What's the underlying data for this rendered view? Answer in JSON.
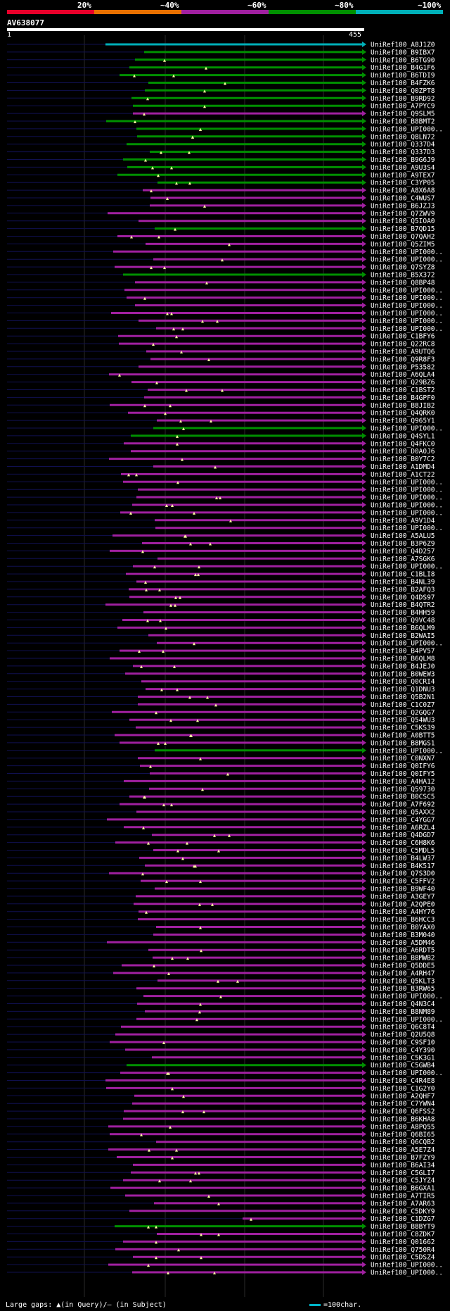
{
  "legend": {
    "labels": [
      "20%",
      "~40%",
      "~60%",
      "~80%",
      "~100%"
    ],
    "colors": [
      "#e8002a",
      "#e87000",
      "#a020a0",
      "#009000",
      "#00b0b8"
    ]
  },
  "query": {
    "id": "AV638077",
    "start": "1",
    "end": "455"
  },
  "footer": {
    "gaps_text": "Large gaps: ▲(in Query)/– (in Subject)",
    "scale_text": "=100char."
  },
  "hits": [
    "UniRef100_A8J1Z0",
    "UniRef100_B9IBX7",
    "UniRef100_B6TG90",
    "UniRef100_B4G1F6",
    "UniRef100_B6TDI9",
    "UniRef100_B4FZK6",
    "UniRef100_Q0ZPT8",
    "UniRef100_B9RD92",
    "UniRef100_A7PYC9",
    "UniRef100_Q9SLM5",
    "UniRef100_B8BMT2",
    "UniRef100_UPI000..",
    "UniRef100_Q8LN72",
    "UniRef100_Q337D4",
    "UniRef100_Q337D3",
    "UniRef100_B9G6J9",
    "UniRef100_A9U3S4",
    "UniRef100_A9TEX7",
    "UniRef100_C3YP05",
    "UniRef100_A8X6A8",
    "UniRef100_C4WUS7",
    "UniRef100_B6JZJ3",
    "UniRef100_Q7ZWV9",
    "UniRef100_Q5IOA0",
    "UniRef100_B7QD15",
    "UniRef100_Q7QAH2",
    "UniRef100_Q5ZIM5",
    "UniRef100_UPI000..",
    "UniRef100_UPI000..",
    "UniRef100_Q7SYZ8",
    "UniRef100_B5X372",
    "UniRef100_Q8BP48",
    "UniRef100_UPI000..",
    "UniRef100_UPI000..",
    "UniRef100_UPI000..",
    "UniRef100_UPI000..",
    "UniRef100_UPI000..",
    "UniRef100_UPI000..",
    "UniRef100_C1BFY6",
    "UniRef100_Q22RC8",
    "UniRef100_A9UTQ6",
    "UniRef100_Q9R8F3",
    "UniRef100_P53582",
    "UniRef100_A6QLA4",
    "UniRef100_Q29BZ6",
    "UniRef100_C1BST2",
    "UniRef100_B4GPF0",
    "UniRef100_B8JIB2",
    "UniRef100_Q4QRK0",
    "UniRef100_Q965Y1",
    "UniRef100_UPI000..",
    "UniRef100_Q4SYL1",
    "UniRef100_Q4FKC0",
    "UniRef100_D0A0J6",
    "UniRef100_B0Y7C2",
    "UniRef100_A1DMD4",
    "UniRef100_A1CT22",
    "UniRef100_UPI000..",
    "UniRef100_UPI000..",
    "UniRef100_UPI000..",
    "UniRef100_UPI000..",
    "UniRef100_UPI000..",
    "UniRef100_A9V1D4",
    "UniRef100_UPI000..",
    "UniRef100_A5ALU5",
    "UniRef100_B3P6Z9",
    "UniRef100_Q4D257",
    "UniRef100_A7SGK6",
    "UniRef100_UPI000..",
    "UniRef100_C1BLI8",
    "UniRef100_B4NL39",
    "UniRef100_B2AFQ3",
    "UniRef100_Q4DS97",
    "UniRef100_B4QTR2",
    "UniRef100_B4HH59",
    "UniRef100_Q9VC48",
    "UniRef100_B6QLM9",
    "UniRef100_B2WAI5",
    "UniRef100_UPI000..",
    "UniRef100_B4PV57",
    "UniRef100_B6QLM8",
    "UniRef100_B4JEJ0",
    "UniRef100_B0WEW3",
    "UniRef100_Q0CRI4",
    "UniRef100_Q1DNU3",
    "UniRef100_Q5B2N1",
    "UniRef100_C1C0Z7",
    "UniRef100_Q2GQG7",
    "UniRef100_Q54WU3",
    "UniRef100_C5KS39",
    "UniRef100_A0BTT5",
    "UniRef100_B8MGS1",
    "UniRef100_UPI000..",
    "UniRef100_C0NXN7",
    "UniRef100_Q0IFY6",
    "UniRef100_Q0IFY5",
    "UniRef100_A4HA12",
    "UniRef100_Q59730",
    "UniRef100_B0CSC5",
    "UniRef100_A7F692",
    "UniRef100_Q5AXX2",
    "UniRef100_C4YGG7",
    "UniRef100_A6RZL4",
    "UniRef100_Q4DGD7",
    "UniRef100_C6H8K6",
    "UniRef100_C5MDL5",
    "UniRef100_B4LW37",
    "UniRef100_B4K517",
    "UniRef100_Q7S3D0",
    "UniRef100_C5FFV2",
    "UniRef100_B9WF40",
    "UniRef100_A3GEY7",
    "UniRef100_A2QPE0",
    "UniRef100_A4HY76",
    "UniRef100_B6HCC3",
    "UniRef100_B0YAX0",
    "UniRef100_B3M040",
    "UniRef100_A5DM46",
    "UniRef100_A6RDT5",
    "UniRef100_B8MWB2",
    "UniRef100_Q5DDE5",
    "UniRef100_A4RH47",
    "UniRef100_Q5KLT3",
    "UniRef100_B3RW65",
    "UniRef100_UPI000..",
    "UniRef100_Q4N3C4",
    "UniRef100_B8NM89",
    "UniRef100_UPI000..",
    "UniRef100_Q6C8T4",
    "UniRef100_Q2U5Q8",
    "UniRef100_C9SF10",
    "UniRef100_C4Y390",
    "UniRef100_C5K3G1",
    "UniRef100_C5GWB4",
    "UniRef100_UPI000..",
    "UniRef100_C4R4E8",
    "UniRef100_C1G2Y0",
    "UniRef100_A2QHF7",
    "UniRef100_C7YWN4",
    "UniRef100_Q6FSS2",
    "UniRef100_B6KHA8",
    "UniRef100_A8PQ55",
    "UniRef100_Q6BI65",
    "UniRef100_Q6CQB2",
    "UniRef100_A5E7Z4",
    "UniRef100_B7FZY9",
    "UniRef100_B6AI34",
    "UniRef100_C5GLI7",
    "UniRef100_C5JYZ4",
    "UniRef100_B6GXA1",
    "UniRef100_A7TIR5",
    "UniRef100_A7AR63",
    "UniRef100_C5DKY9",
    "UniRef100_C1DZG7",
    "UniRef100_B8BYT9",
    "UniRef100_C8ZDK7",
    "UniRef100_Q01662",
    "UniRef100_Q750R4",
    "UniRef100_C5DSZ4",
    "UniRef100_UPI000..",
    "UniRef100_UPI000.."
  ],
  "identity_bins": [
    "~100%",
    "~80%",
    "~80%",
    "~80%",
    "~80%",
    "~80%",
    "~80%",
    "~80%",
    "~80%",
    "~60%",
    "~80%",
    "~80%",
    "~80%",
    "~80%",
    "~80%",
    "~80%",
    "~80%",
    "~80%",
    "~80%",
    "~60%",
    "~60%",
    "~60%",
    "~60%",
    "~60%",
    "~80%",
    "~60%",
    "~60%",
    "~60%",
    "~60%",
    "~60%",
    "~80%",
    "~60%",
    "~60%",
    "~60%",
    "~60%",
    "~60%",
    "~60%",
    "~60%",
    "~60%",
    "~60%",
    "~60%",
    "~60%",
    "~60%",
    "~60%",
    "~60%",
    "~60%",
    "~60%",
    "~60%",
    "~60%",
    "~60%",
    "~80%",
    "~80%",
    "~60%",
    "~60%",
    "~60%",
    "~60%",
    "~60%",
    "~60%",
    "~60%",
    "~60%",
    "~60%",
    "~60%",
    "~60%",
    "~60%",
    "~60%",
    "~60%",
    "~60%",
    "~60%",
    "~60%",
    "~60%",
    "~60%",
    "~60%",
    "~60%",
    "~60%",
    "~60%",
    "~60%",
    "~60%",
    "~60%",
    "~60%",
    "~60%",
    "~60%",
    "~60%",
    "~60%",
    "~60%",
    "~60%",
    "~60%",
    "~60%",
    "~60%",
    "~60%",
    "~60%",
    "~60%",
    "~60%",
    "~80%",
    "~60%",
    "~60%",
    "~60%",
    "~60%",
    "~60%",
    "~60%",
    "~60%",
    "~60%",
    "~60%",
    "~60%",
    "~60%",
    "~60%",
    "~60%",
    "~60%",
    "~60%",
    "~60%",
    "~60%",
    "~60%",
    "~60%",
    "~60%",
    "~60%",
    "~60%",
    "~60%",
    "~60%",
    "~60%",
    "~60%",
    "~60%",
    "~60%",
    "~60%",
    "~60%",
    "~60%",
    "~60%",
    "~60%",
    "~60%",
    "~60%",
    "~60%",
    "~60%",
    "~60%",
    "~60%",
    "~60%",
    "~80%",
    "~60%",
    "~60%",
    "~60%",
    "~60%",
    "~60%",
    "~60%",
    "~60%",
    "~60%",
    "~60%",
    "~60%",
    "~60%",
    "~60%",
    "~60%",
    "~60%",
    "~60%",
    "~60%",
    "~60%",
    "~60%",
    "~60%",
    "~60%",
    "~80%",
    "~60%",
    "~60%",
    "~60%",
    "~60%",
    "~60%",
    "~60%"
  ]
}
